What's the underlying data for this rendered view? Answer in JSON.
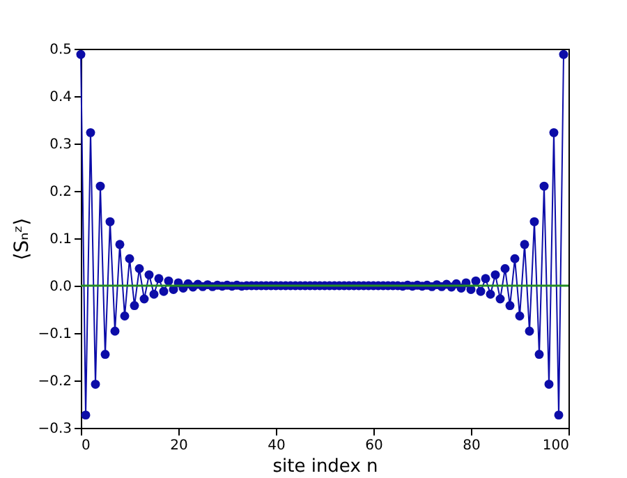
{
  "chart_data": {
    "type": "line",
    "xlabel": "site index n",
    "ylabel": "⟨Sₙᶻ⟩",
    "x": [
      0,
      1,
      2,
      3,
      4,
      5,
      6,
      7,
      8,
      9,
      10,
      11,
      12,
      13,
      14,
      15,
      16,
      17,
      18,
      19,
      20,
      21,
      22,
      23,
      24,
      25,
      26,
      27,
      28,
      29,
      30,
      31,
      32,
      33,
      34,
      35,
      36,
      37,
      38,
      39,
      40,
      41,
      42,
      43,
      44,
      45,
      46,
      47,
      48,
      49,
      50,
      51,
      52,
      53,
      54,
      55,
      56,
      57,
      58,
      59,
      60,
      61,
      62,
      63,
      64,
      65,
      66,
      67,
      68,
      69,
      70,
      71,
      72,
      73,
      74,
      75,
      76,
      77,
      78,
      79,
      80,
      81,
      82,
      83,
      84,
      85,
      86,
      87,
      88,
      89,
      90,
      91,
      92,
      93,
      94,
      95,
      96,
      97,
      98,
      99
    ],
    "series": [
      {
        "color": "#0c0ca8",
        "values": [
          0.488,
          -0.273,
          0.323,
          -0.208,
          0.21,
          -0.145,
          0.135,
          -0.096,
          0.087,
          -0.064,
          0.057,
          -0.042,
          0.036,
          -0.028,
          0.023,
          -0.018,
          0.015,
          -0.012,
          0.01,
          -0.008,
          0.006,
          -0.005,
          0.004,
          -0.003,
          0.003,
          -0.002,
          0.002,
          -0.002,
          0.001,
          -0.001,
          0.001,
          -0.001,
          0.001,
          -0.001,
          0,
          0,
          0,
          0,
          0,
          0,
          0,
          0,
          0,
          0,
          0,
          0,
          0,
          0,
          0,
          0,
          0,
          0,
          0,
          0,
          0,
          0,
          0,
          0,
          0,
          0,
          0,
          0,
          0,
          0,
          0,
          0,
          -0.001,
          0.001,
          -0.001,
          0.001,
          -0.001,
          0.001,
          -0.002,
          0.002,
          -0.002,
          0.003,
          -0.003,
          0.004,
          -0.005,
          0.006,
          -0.008,
          0.01,
          -0.012,
          0.015,
          -0.018,
          0.023,
          -0.028,
          0.036,
          -0.042,
          0.057,
          -0.064,
          0.087,
          -0.096,
          0.135,
          -0.145,
          0.21,
          -0.208,
          0.323,
          -0.273,
          0.488
        ]
      }
    ],
    "xlim": [
      0,
      100
    ],
    "xticks": [
      0,
      20,
      40,
      60,
      80,
      100
    ],
    "ylim": [
      -0.3,
      0.5
    ],
    "yticks": [
      -0.3,
      -0.2,
      -0.1,
      {
        "value": 0,
        "label": "0.0"
      },
      0.1,
      0.2,
      0.3,
      0.4,
      0.5
    ],
    "ref_lines": [
      {
        "axis": "y",
        "value": 0,
        "color": "#228b22"
      }
    ],
    "marker": "circle",
    "line_style": "solid",
    "grid": false
  }
}
